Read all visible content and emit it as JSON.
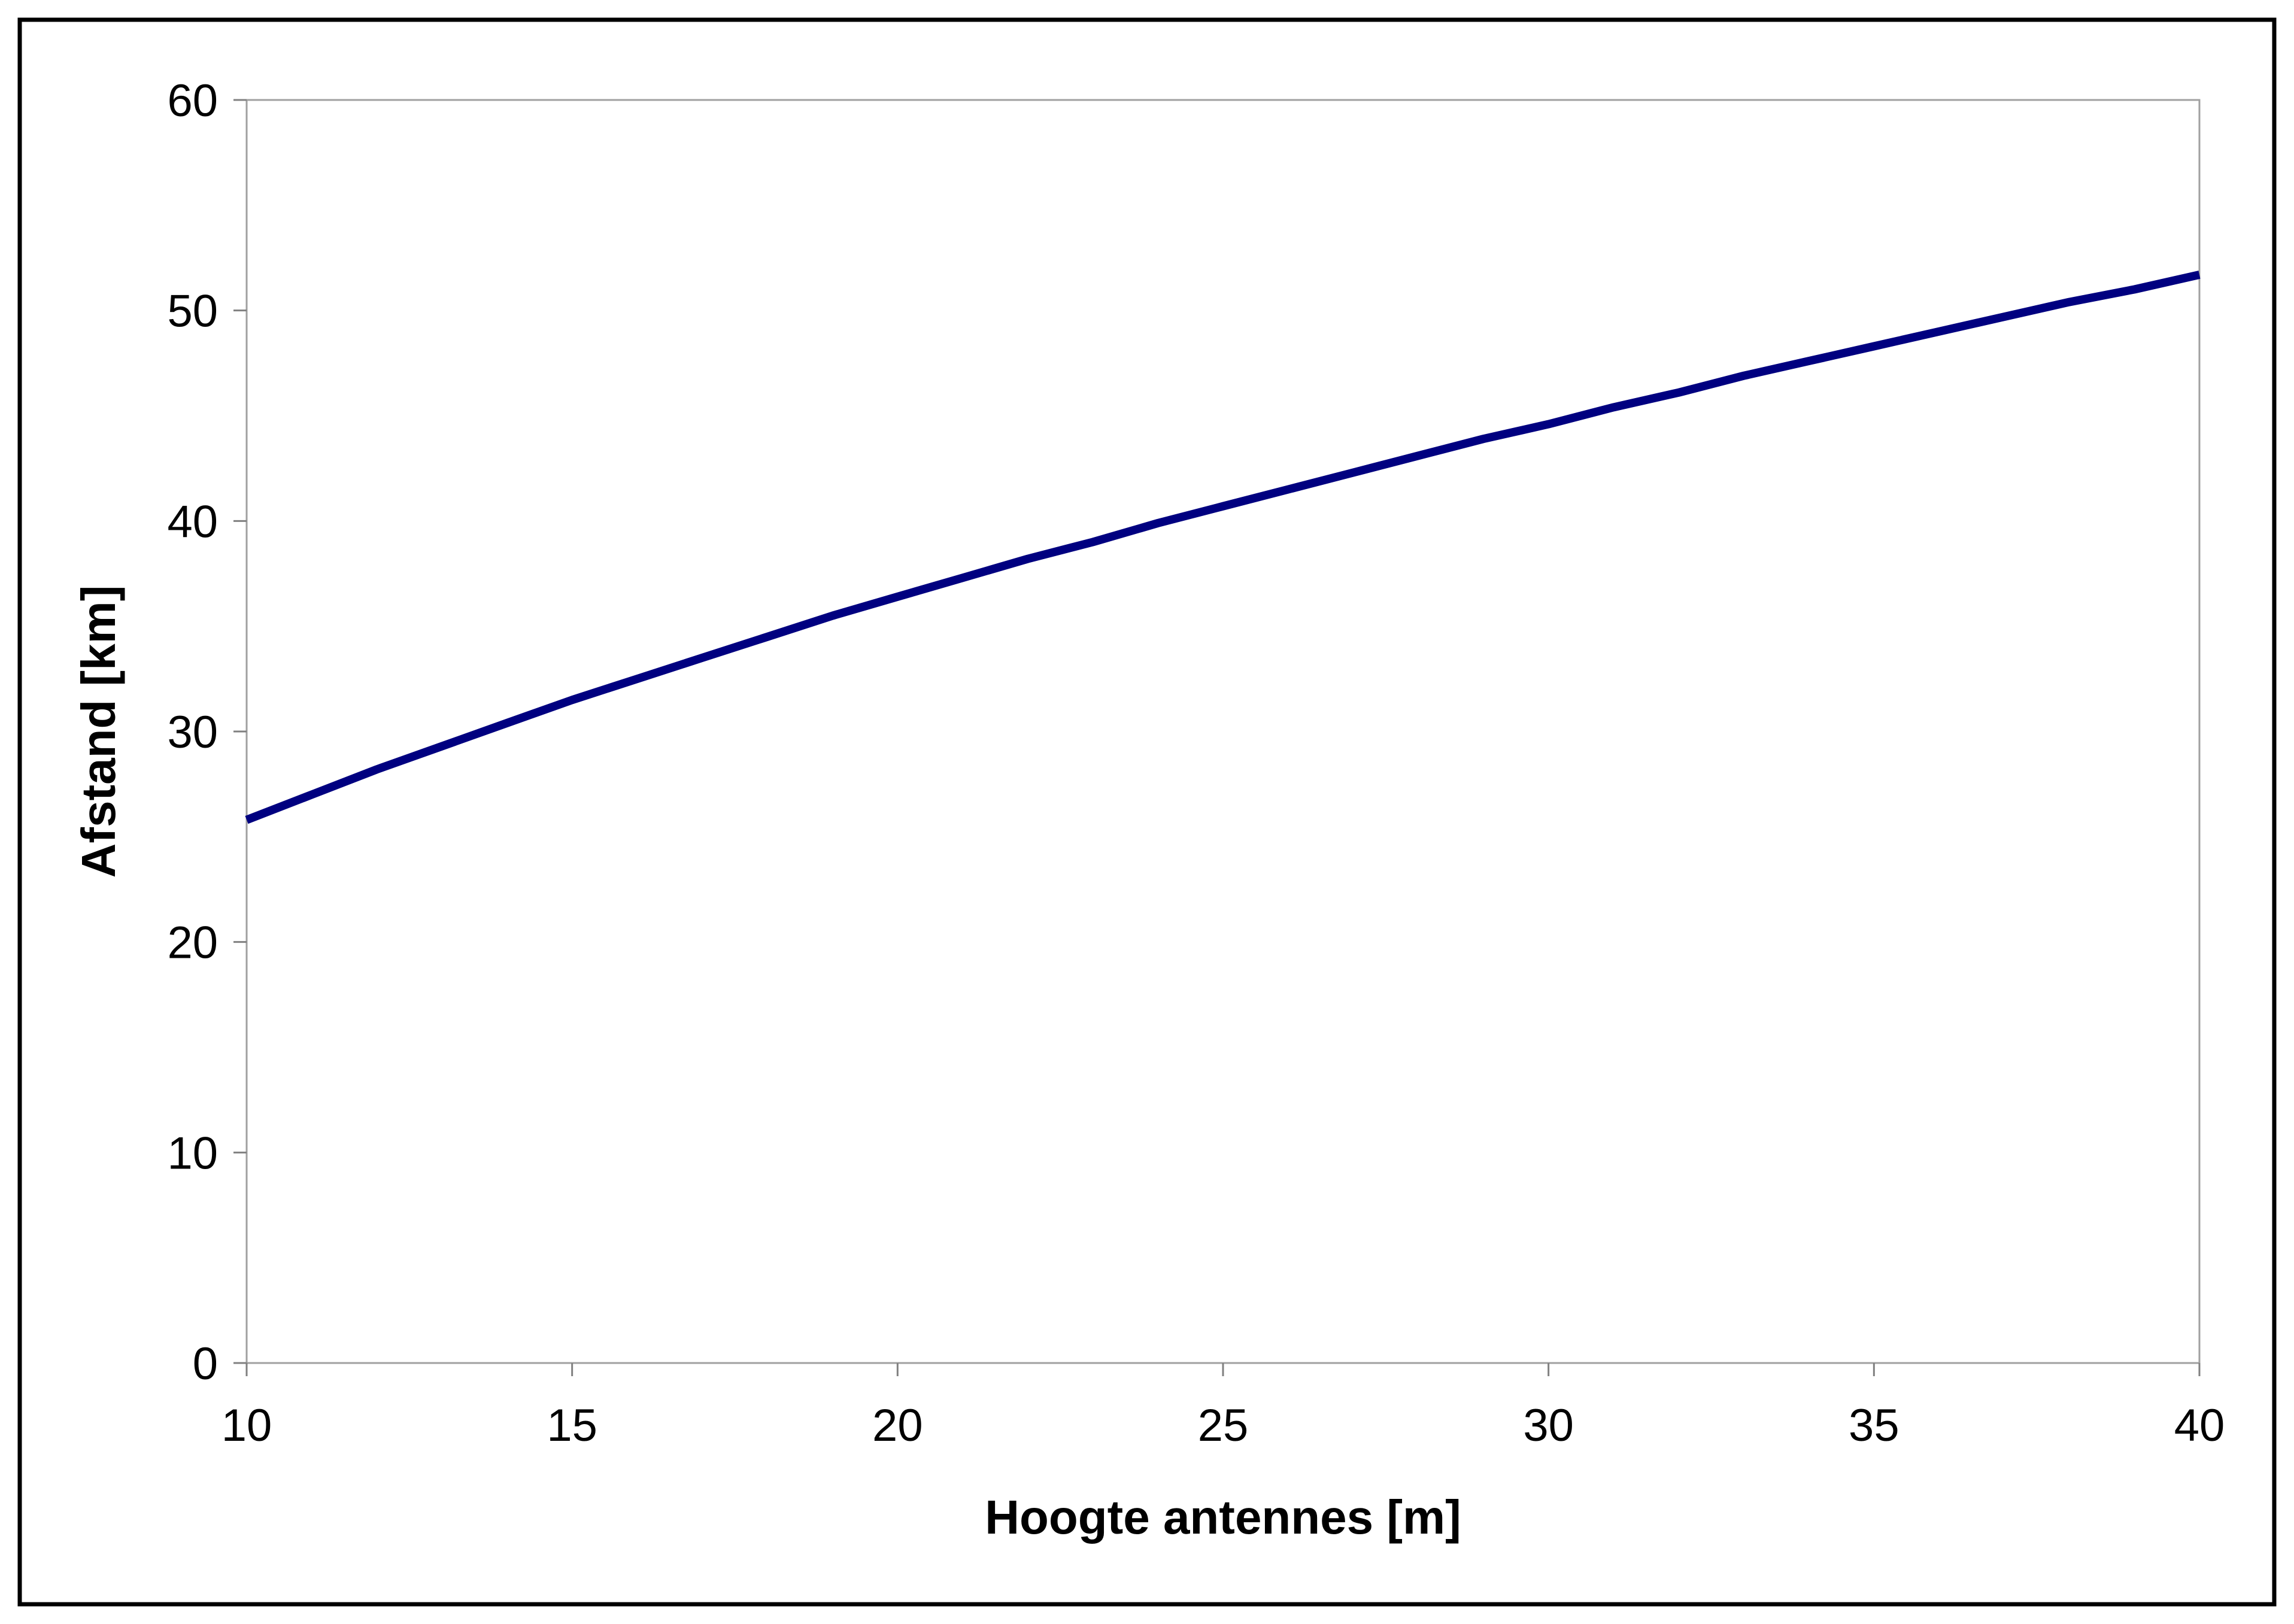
{
  "chart_data": {
    "type": "line",
    "title": "",
    "xlabel": "Hoogte antennes [m]",
    "ylabel": "Afstand [km]",
    "xlim": [
      10,
      40
    ],
    "ylim": [
      0,
      60
    ],
    "x_ticks": [
      "10",
      "15",
      "20",
      "25",
      "30",
      "35",
      "40"
    ],
    "y_ticks": [
      "0",
      "10",
      "20",
      "30",
      "40",
      "50",
      "60"
    ],
    "grid": false,
    "legend": "none",
    "series": [
      {
        "color": "#000080",
        "x": [
          10,
          11,
          12,
          13,
          14,
          15,
          16,
          17,
          18,
          19,
          20,
          21,
          22,
          23,
          24,
          25,
          26,
          27,
          28,
          29,
          30,
          31,
          32,
          33,
          34,
          35,
          36,
          37,
          38,
          39,
          40
        ],
        "y": [
          25.8,
          27.0,
          28.2,
          29.3,
          30.4,
          31.5,
          32.5,
          33.5,
          34.5,
          35.5,
          36.4,
          37.3,
          38.2,
          39.0,
          39.9,
          40.7,
          41.5,
          42.3,
          43.1,
          43.9,
          44.6,
          45.4,
          46.1,
          46.9,
          47.6,
          48.3,
          49.0,
          49.7,
          50.4,
          51.0,
          51.7
        ]
      }
    ]
  }
}
